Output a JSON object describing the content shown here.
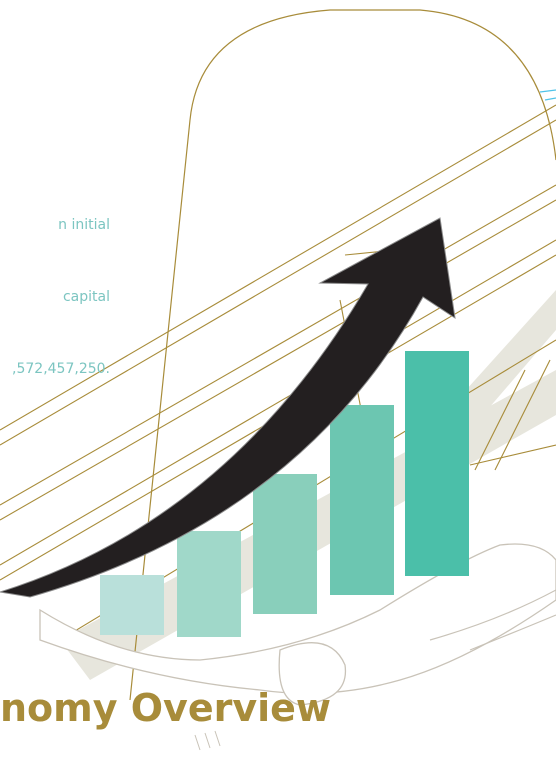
{
  "intro": {
    "line_1": "n initial",
    "line_2": " capital",
    "line_3": ",572,457,250."
  },
  "title": "nomy Overview",
  "colors": {
    "gold": "#a88c3a",
    "teal_text": "#7cc5c1",
    "arrow": "#231f20",
    "bar_1": "#b9e0da",
    "bar_2": "#a0d8c9",
    "bar_3": "#89cfbb",
    "bar_4": "#6cc6b1",
    "bar_5": "#4bbfa9",
    "band": "#e7e6dd"
  },
  "icons": {
    "arrow": "growth-arrow-icon",
    "hand": "open-hand-icon"
  }
}
